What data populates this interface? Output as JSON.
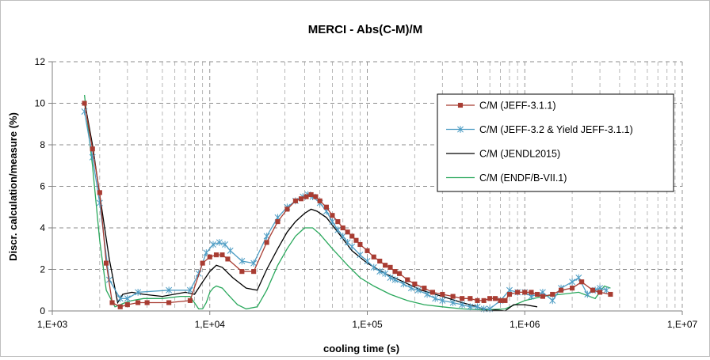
{
  "chart_data": {
    "type": "line",
    "title": "MERCI - Abs(C-M)/M",
    "xlabel": "cooling time (s)",
    "ylabel": "Discr. calculation/measure  (%)",
    "x_scale": "log",
    "xlim": [
      1000,
      10000000
    ],
    "ylim": [
      0,
      12
    ],
    "x_ticks": [
      {
        "value": 1000,
        "label": "1,E+03"
      },
      {
        "value": 10000,
        "label": "1,E+04"
      },
      {
        "value": 100000,
        "label": "1,E+05"
      },
      {
        "value": 1000000,
        "label": "1,E+06"
      },
      {
        "value": 10000000,
        "label": "1,E+07"
      }
    ],
    "y_ticks": [
      {
        "value": 0,
        "label": "0"
      },
      {
        "value": 2,
        "label": "2"
      },
      {
        "value": 4,
        "label": "4"
      },
      {
        "value": 6,
        "label": "6"
      },
      {
        "value": 8,
        "label": "8"
      },
      {
        "value": 10,
        "label": "10"
      },
      {
        "value": 12,
        "label": "12"
      }
    ],
    "grid": {
      "major": true,
      "minor_x": true,
      "style": "dashed"
    },
    "legend_position": "right",
    "series": [
      {
        "name": "C/M (JEFF-3.1.1)",
        "color": "#a83c32",
        "marker": "square",
        "x": [
          1600,
          1800,
          2000,
          2200,
          2400,
          2700,
          3000,
          3500,
          4000,
          5500,
          7500,
          9000,
          10000,
          11000,
          12000,
          13000,
          16000,
          19000,
          23000,
          27000,
          31000,
          35000,
          38000,
          41000,
          44000,
          47000,
          50000,
          55000,
          60000,
          65000,
          70000,
          75000,
          80000,
          85000,
          90000,
          100000,
          110000,
          120000,
          130000,
          140000,
          150000,
          160000,
          180000,
          200000,
          230000,
          260000,
          300000,
          350000,
          400000,
          450000,
          500000,
          550000,
          600000,
          650000,
          700000,
          750000,
          800000,
          900000,
          1000000,
          1100000,
          1200000,
          1300000,
          1500000,
          1700000,
          2000000,
          2300000,
          2700000,
          3000000,
          3500000
        ],
        "y": [
          10.0,
          7.8,
          5.7,
          2.3,
          0.4,
          0.2,
          0.3,
          0.4,
          0.4,
          0.4,
          0.5,
          2.3,
          2.6,
          2.7,
          2.7,
          2.5,
          1.9,
          1.9,
          3.3,
          4.3,
          4.9,
          5.3,
          5.4,
          5.5,
          5.6,
          5.5,
          5.3,
          5.0,
          4.6,
          4.3,
          4.0,
          3.8,
          3.6,
          3.4,
          3.2,
          2.9,
          2.6,
          2.4,
          2.2,
          2.1,
          1.9,
          1.8,
          1.5,
          1.3,
          1.1,
          0.9,
          0.8,
          0.7,
          0.6,
          0.6,
          0.5,
          0.5,
          0.6,
          0.6,
          0.5,
          0.5,
          0.8,
          0.9,
          0.9,
          0.9,
          0.8,
          0.7,
          0.8,
          1.0,
          1.1,
          1.4,
          1.0,
          0.9,
          0.8
        ]
      },
      {
        "name": "C/M  (JEFF-3.2 & Yield JEFF-3.1.1)",
        "color": "#4e9dc4",
        "marker": "star",
        "x": [
          1600,
          1800,
          2000,
          2300,
          2700,
          3000,
          3500,
          5500,
          7500,
          8500,
          9500,
          10500,
          11500,
          12500,
          13500,
          16000,
          19000,
          23000,
          27000,
          31000,
          35000,
          39000,
          42000,
          45000,
          50000,
          55000,
          60000,
          65000,
          70000,
          75000,
          80000,
          90000,
          100000,
          110000,
          120000,
          130000,
          140000,
          150000,
          170000,
          190000,
          210000,
          240000,
          270000,
          300000,
          350000,
          400000,
          450000,
          500000,
          550000,
          600000,
          700000,
          800000,
          900000,
          1000000,
          1100000,
          1300000,
          1500000,
          1700000,
          2000000,
          2200000,
          2500000,
          2800000,
          3000000,
          3300000
        ],
        "y": [
          9.6,
          7.4,
          5.2,
          1.5,
          0.6,
          0.6,
          0.9,
          1.0,
          1.0,
          1.8,
          2.8,
          3.2,
          3.3,
          3.2,
          2.9,
          2.4,
          2.3,
          3.6,
          4.5,
          5.0,
          5.3,
          5.5,
          5.6,
          5.5,
          5.2,
          4.8,
          4.3,
          3.9,
          3.6,
          3.3,
          3.1,
          2.7,
          2.4,
          2.1,
          1.9,
          1.8,
          1.6,
          1.5,
          1.3,
          1.1,
          1.0,
          0.8,
          0.6,
          0.5,
          0.4,
          0.3,
          0.2,
          0.2,
          0.1,
          0.1,
          0.5,
          1.0,
          0.9,
          0.9,
          0.7,
          0.9,
          0.5,
          1.1,
          1.4,
          1.6,
          0.8,
          1.0,
          1.1,
          1.0
        ]
      },
      {
        "name": "C/M (JENDL2015)",
        "color": "#000000",
        "marker": "none",
        "x": [
          1600,
          1800,
          2000,
          2300,
          2600,
          2800,
          3200,
          3800,
          5000,
          7000,
          8000,
          9000,
          10000,
          11000,
          12000,
          14000,
          17000,
          20000,
          23000,
          27000,
          31000,
          35000,
          40000,
          44000,
          48000,
          55000,
          65000,
          80000,
          100000,
          130000,
          170000,
          220000,
          300000,
          400000,
          500000,
          580000,
          650000,
          750000,
          850000,
          1000000,
          1200000
        ],
        "y": [
          10.1,
          8.0,
          5.6,
          2.5,
          0.4,
          0.8,
          0.9,
          0.8,
          0.7,
          0.9,
          0.8,
          1.4,
          1.9,
          2.2,
          2.1,
          1.6,
          1.1,
          1.0,
          2.0,
          3.0,
          3.8,
          4.3,
          4.7,
          4.9,
          4.8,
          4.5,
          3.8,
          2.9,
          2.3,
          1.8,
          1.4,
          1.0,
          0.7,
          0.4,
          0.2,
          0.0,
          0.05,
          0.0,
          0.3,
          0.3,
          0.2
        ]
      },
      {
        "name": "C/M (ENDF/B-VII.1)",
        "color": "#2aa85c",
        "marker": "none",
        "x": [
          1600,
          1700,
          1800,
          2000,
          2200,
          2500,
          2700,
          2900,
          3200,
          3800,
          5000,
          6500,
          7500,
          8500,
          9000,
          9500,
          10000,
          10500,
          11000,
          12000,
          13000,
          15000,
          17000,
          20000,
          23000,
          27000,
          31000,
          35000,
          40000,
          45000,
          50000,
          60000,
          75000,
          90000,
          110000,
          140000,
          180000,
          230000,
          300000,
          400000,
          550000,
          750000,
          1000000,
          1300000,
          1700000,
          2200000,
          2800000,
          3200000,
          3500000
        ],
        "y": [
          10.4,
          8.6,
          7.0,
          3.4,
          1.0,
          0.2,
          0.3,
          0.4,
          0.5,
          0.6,
          0.6,
          0.7,
          0.7,
          0.1,
          0.1,
          0.4,
          0.9,
          1.1,
          1.2,
          1.1,
          0.8,
          0.3,
          0.1,
          0.2,
          1.0,
          2.2,
          3.0,
          3.6,
          4.0,
          4.0,
          3.7,
          3.0,
          2.2,
          1.6,
          1.2,
          0.8,
          0.5,
          0.3,
          0.2,
          0.1,
          0.05,
          0.1,
          0.5,
          0.7,
          0.8,
          0.9,
          0.6,
          1.2,
          1.1
        ]
      }
    ]
  }
}
